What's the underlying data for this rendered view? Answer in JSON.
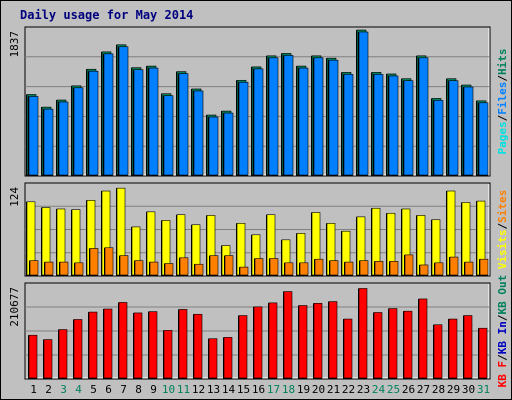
{
  "title": "Daily usage for May 2014",
  "colors": {
    "background": "#c0c0c0",
    "panel": "#c0c0c0",
    "grid": "#808080",
    "title": "#00007f",
    "weekday": "#000000",
    "weekend": "#00805c",
    "pages": "#00e0e0",
    "files": "#0080ff",
    "hits": "#00805c",
    "visits": "#ffff00",
    "sites": "#ff8000",
    "kbf": "#ff0000",
    "kbin": "#0000c0",
    "kbout": "#00805c",
    "slash": "#000000"
  },
  "chart_data": {
    "type": "bar",
    "categories": [
      "1",
      "2",
      "3",
      "4",
      "5",
      "6",
      "7",
      "8",
      "9",
      "10",
      "11",
      "12",
      "13",
      "14",
      "15",
      "16",
      "17",
      "18",
      "19",
      "20",
      "21",
      "22",
      "23",
      "24",
      "25",
      "26",
      "27",
      "28",
      "29",
      "30",
      "31"
    ],
    "weekend_days": [
      3,
      4,
      10,
      11,
      17,
      18,
      24,
      25,
      31
    ],
    "panels": [
      {
        "max_label": "1837",
        "ylim": [
          0,
          1837
        ],
        "legend": [
          {
            "text": "Pages",
            "color": "#00e0e0"
          },
          {
            "text": "/",
            "color": "#000000"
          },
          {
            "text": "Files",
            "color": "#0080ff"
          },
          {
            "text": "/",
            "color": "#000000"
          },
          {
            "text": "Hits",
            "color": "#00805c"
          }
        ],
        "series": [
          {
            "name": "Hits",
            "color": "#00805c",
            "values": [
              1020,
              860,
              950,
              1130,
              1340,
              1560,
              1650,
              1360,
              1380,
              1030,
              1310,
              1090,
              760,
              810,
              1200,
              1370,
              1510,
              1540,
              1380,
              1510,
              1480,
              1300,
              1837,
              1300,
              1280,
              1220,
              1510,
              970,
              1220,
              1140,
              940
            ]
          },
          {
            "name": "Files",
            "color": "#00a8ff",
            "values": [
              1020,
              860,
              950,
              1130,
              1340,
              1560,
              1650,
              1360,
              1380,
              1030,
              1310,
              1090,
              760,
              810,
              1200,
              1370,
              1510,
              1540,
              1380,
              1510,
              1480,
              1300,
              1837,
              1300,
              1280,
              1220,
              1510,
              970,
              1220,
              1140,
              940
            ]
          }
        ]
      },
      {
        "max_label": "124",
        "ylim": [
          0,
          124
        ],
        "legend": [
          {
            "text": "Visits",
            "color": "#ffff00"
          },
          {
            "text": "/",
            "color": "#000000"
          },
          {
            "text": "Sites",
            "color": "#ff8000"
          }
        ],
        "series": [
          {
            "name": "Visits",
            "color": "#ffff00",
            "values": [
              102,
              94,
              92,
              91,
              104,
              117,
              121,
              67,
              88,
              76,
              84,
              70,
              83,
              41,
              72,
              56,
              84,
              49,
              58,
              87,
              72,
              61,
              81,
              93,
              86,
              92,
              83,
              77,
              117,
              101,
              103
            ]
          },
          {
            "name": "Sites",
            "color": "#ff8000",
            "values": [
              20,
              18,
              18,
              17,
              37,
              38,
              27,
              20,
              18,
              16,
              24,
              15,
              27,
              27,
              11,
              23,
              23,
              17,
              17,
              22,
              20,
              18,
              20,
              19,
              19,
              28,
              14,
              17,
              25,
              18,
              22
            ]
          }
        ]
      },
      {
        "max_label": "210677",
        "ylim": [
          0,
          210677
        ],
        "legend": [
          {
            "text": "KB F",
            "color": "#ff0000"
          },
          {
            "text": "/",
            "color": "#000000"
          },
          {
            "text": "KB In",
            "color": "#0000c0"
          },
          {
            "text": "/",
            "color": "#000000"
          },
          {
            "text": "KB Out",
            "color": "#00805c"
          }
        ],
        "series": [
          {
            "name": "KB F",
            "color": "#ff0000",
            "values": [
              98000,
              88000,
              111000,
              134000,
              151000,
              158000,
              173000,
              149000,
              152000,
              109000,
              157000,
              146000,
              90000,
              93000,
              143000,
              163000,
              172000,
              198000,
              166000,
              171000,
              175000,
              135000,
              205000,
              150000,
              159000,
              153000,
              181000,
              122000,
              135000,
              143000,
              114000
            ]
          }
        ]
      }
    ]
  }
}
